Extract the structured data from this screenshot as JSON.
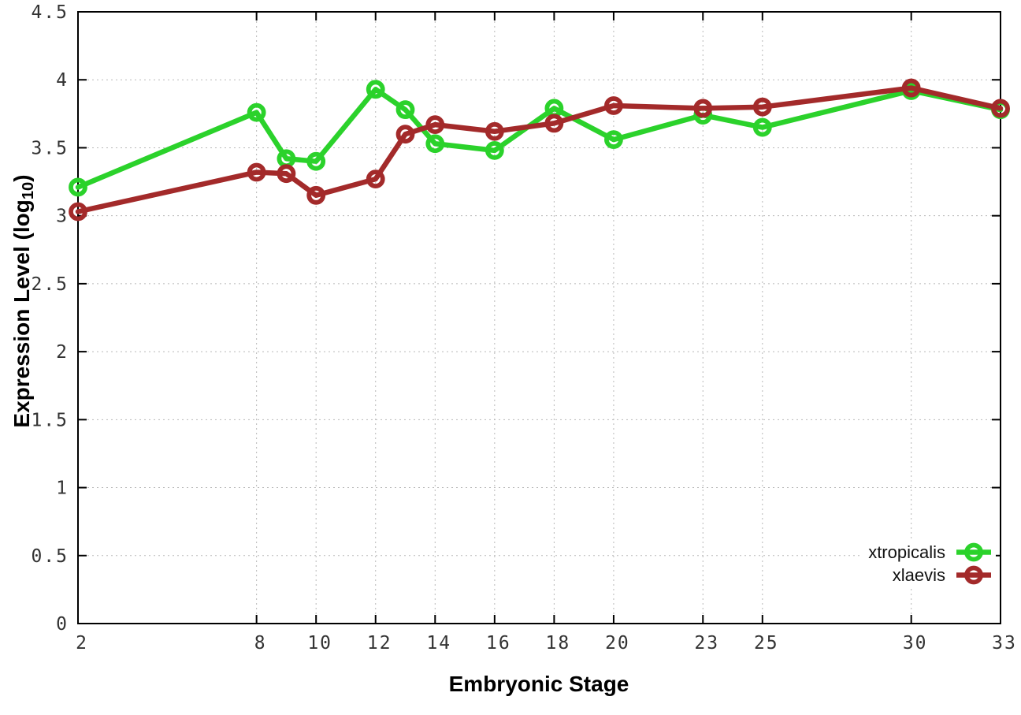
{
  "chart_data": {
    "type": "line",
    "title": "",
    "xlabel": "Embryonic Stage",
    "ylabel": "Expression Level (log10)",
    "ylabel_parts": {
      "main": "Expression Level (log",
      "sub": "10",
      "end": ")"
    },
    "x": [
      2,
      8,
      9,
      10,
      12,
      13,
      14,
      16,
      18,
      20,
      23,
      25,
      30,
      33
    ],
    "xticks": [
      2,
      8,
      10,
      12,
      14,
      16,
      18,
      20,
      23,
      25,
      30,
      33
    ],
    "yticks": [
      0,
      0.5,
      1,
      1.5,
      2,
      2.5,
      3,
      3.5,
      4,
      4.5
    ],
    "xlim": [
      2,
      33
    ],
    "ylim": [
      0,
      4.5
    ],
    "grid": true,
    "legend_position": "bottom-right",
    "series": [
      {
        "name": "xtropicalis",
        "color": "#2bd22b",
        "values": [
          3.21,
          3.76,
          3.42,
          3.4,
          3.93,
          3.78,
          3.53,
          3.48,
          3.79,
          3.56,
          3.74,
          3.65,
          3.92,
          3.78
        ]
      },
      {
        "name": "xlaevis",
        "color": "#a32a2a",
        "values": [
          3.03,
          3.32,
          3.31,
          3.15,
          3.27,
          3.6,
          3.67,
          3.62,
          3.68,
          3.81,
          3.79,
          3.8,
          3.94,
          3.79
        ]
      }
    ]
  },
  "style_colors": {
    "grid": "#b8b8b8",
    "border": "#000000",
    "tick_label": "#333333"
  }
}
